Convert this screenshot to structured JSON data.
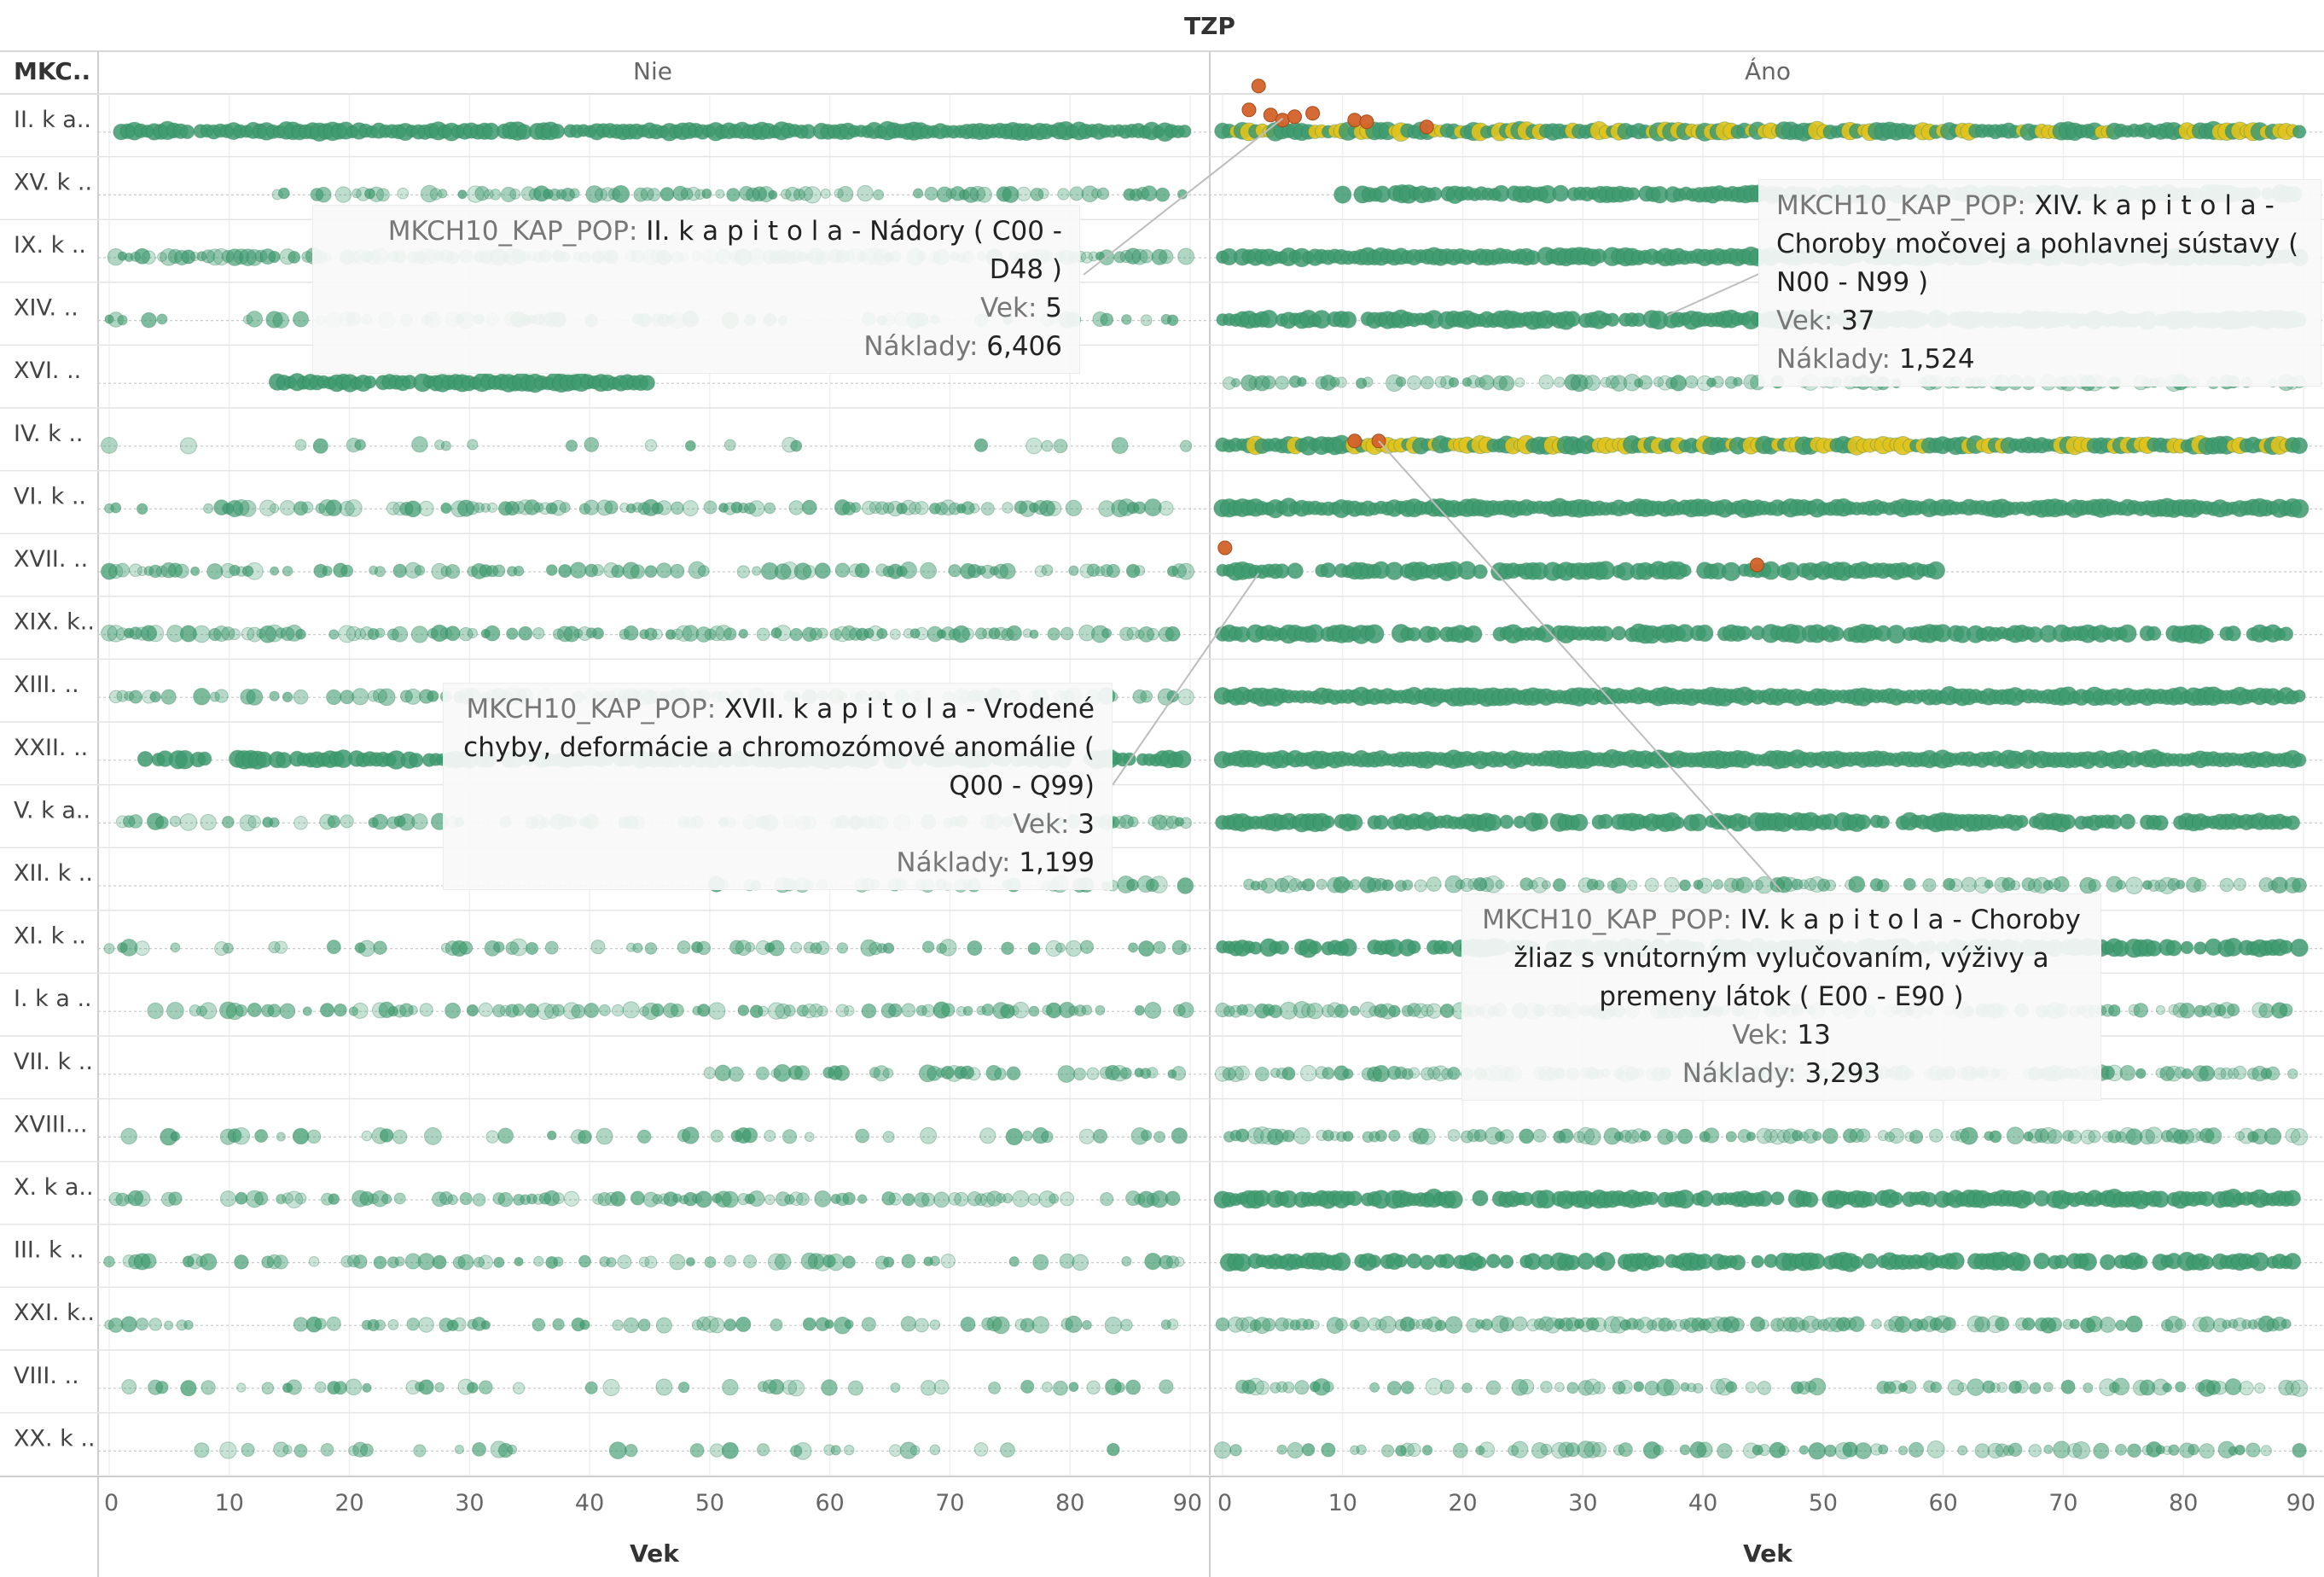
{
  "header": {
    "title": "TZP",
    "row_field": "MKC..",
    "x_title": "Vek"
  },
  "chart_data": {
    "type": "scatter",
    "title": "TZP",
    "xlabel": "Vek",
    "panels": [
      "Nie",
      "Áno"
    ],
    "xlim": [
      0,
      90
    ],
    "x_ticks": [
      0,
      10,
      20,
      30,
      40,
      50,
      60,
      70,
      80,
      90
    ],
    "x_tick_labels": [
      "0",
      "10",
      "20",
      "30",
      "40",
      "50",
      "60",
      "70",
      "80",
      "90"
    ],
    "rows": [
      "II. k a..",
      "XV. k ..",
      "IX. k ..",
      "XIV. ..",
      "XVI. ..",
      "IV. k ..",
      "VI. k ..",
      "XVII. ..",
      "XIX. k..",
      "XIII. ..",
      "XXII. ..",
      "V. k a..",
      "XII. k ..",
      "XI. k ..",
      "I. k a ..",
      "VII. k ..",
      "XVIII...",
      "X. k a..",
      "III. k ..",
      "XXI. k..",
      "VIII. ..",
      "XX. k .."
    ],
    "color_legend": {
      "low": "#3e9a6e",
      "mid": "#e0c21c",
      "high": "#d4622a"
    },
    "highlighted_points": [
      {
        "row": "II. k a..",
        "panel": "Áno",
        "x": 5,
        "cost": 6406
      },
      {
        "row": "XIV. ..",
        "panel": "Áno",
        "x": 37,
        "cost": 1524
      },
      {
        "row": "XVII. ..",
        "panel": "Áno",
        "x": 3,
        "cost": 1199
      },
      {
        "row": "IV. k ..",
        "panel": "Áno",
        "x": 13,
        "cost": 3293
      }
    ],
    "grid": true
  },
  "tooltips": [
    {
      "label_key": "MKCH10_KAP_POP:",
      "label_val": "II. k a p i t o l a - Nádory ( C00 - D48 )",
      "vek_key": "Vek:",
      "vek_val": "5",
      "cost_key": "Náklady:",
      "cost_val": "6,406"
    },
    {
      "label_key": "MKCH10_KAP_POP:",
      "label_val": "XIV. k a p i t o l a - Choroby močovej a pohlavnej sústavy ( N00 - N99 )",
      "vek_key": "Vek:",
      "vek_val": "37",
      "cost_key": "Náklady:",
      "cost_val": "1,524"
    },
    {
      "label_key": "MKCH10_KAP_POP:",
      "label_val": "XVII. k a p i t o l a - Vrodené chyby, deformácie a chromozómové anomálie ( Q00 - Q99)",
      "vek_key": "Vek:",
      "vek_val": "3",
      "cost_key": "Náklady:",
      "cost_val": "1,199"
    },
    {
      "label_key": "MKCH10_KAP_POP:",
      "label_val": "IV. k a p i t o l a - Choroby žliaz s vnútorným vylučovaním, výživy a premeny látok ( E00 - E90 )",
      "vek_key": "Vek:",
      "vek_val": "13",
      "cost_key": "Náklady:",
      "cost_val": "3,293"
    }
  ]
}
